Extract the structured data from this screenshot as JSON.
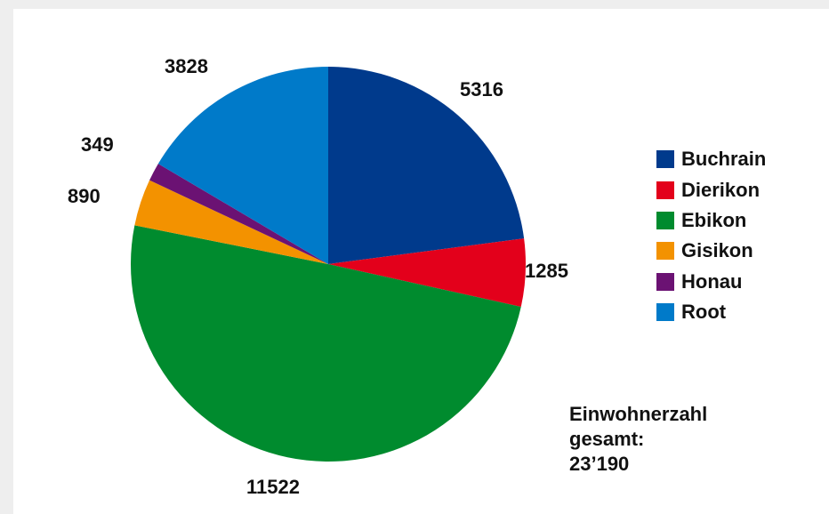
{
  "chart_data": {
    "type": "pie",
    "categories": [
      "Buchrain",
      "Dierikon",
      "Ebikon",
      "Gisikon",
      "Honau",
      "Root"
    ],
    "values": [
      5316,
      1285,
      11522,
      890,
      349,
      3828
    ],
    "colors": [
      "#003a8c",
      "#e3001b",
      "#008b2e",
      "#f39200",
      "#6b1273",
      "#007ac9"
    ],
    "data_labels": [
      "5316",
      "1285",
      "11522",
      "890",
      "349",
      "3828"
    ],
    "legend_position": "right",
    "start_angle_deg": 0,
    "direction": "clockwise"
  },
  "total_box": {
    "line1": "Einwohnerzahl",
    "line2": "gesamt:",
    "line3": "23’190"
  },
  "background_color": "#ffffff",
  "page_color": "#eeeeee"
}
